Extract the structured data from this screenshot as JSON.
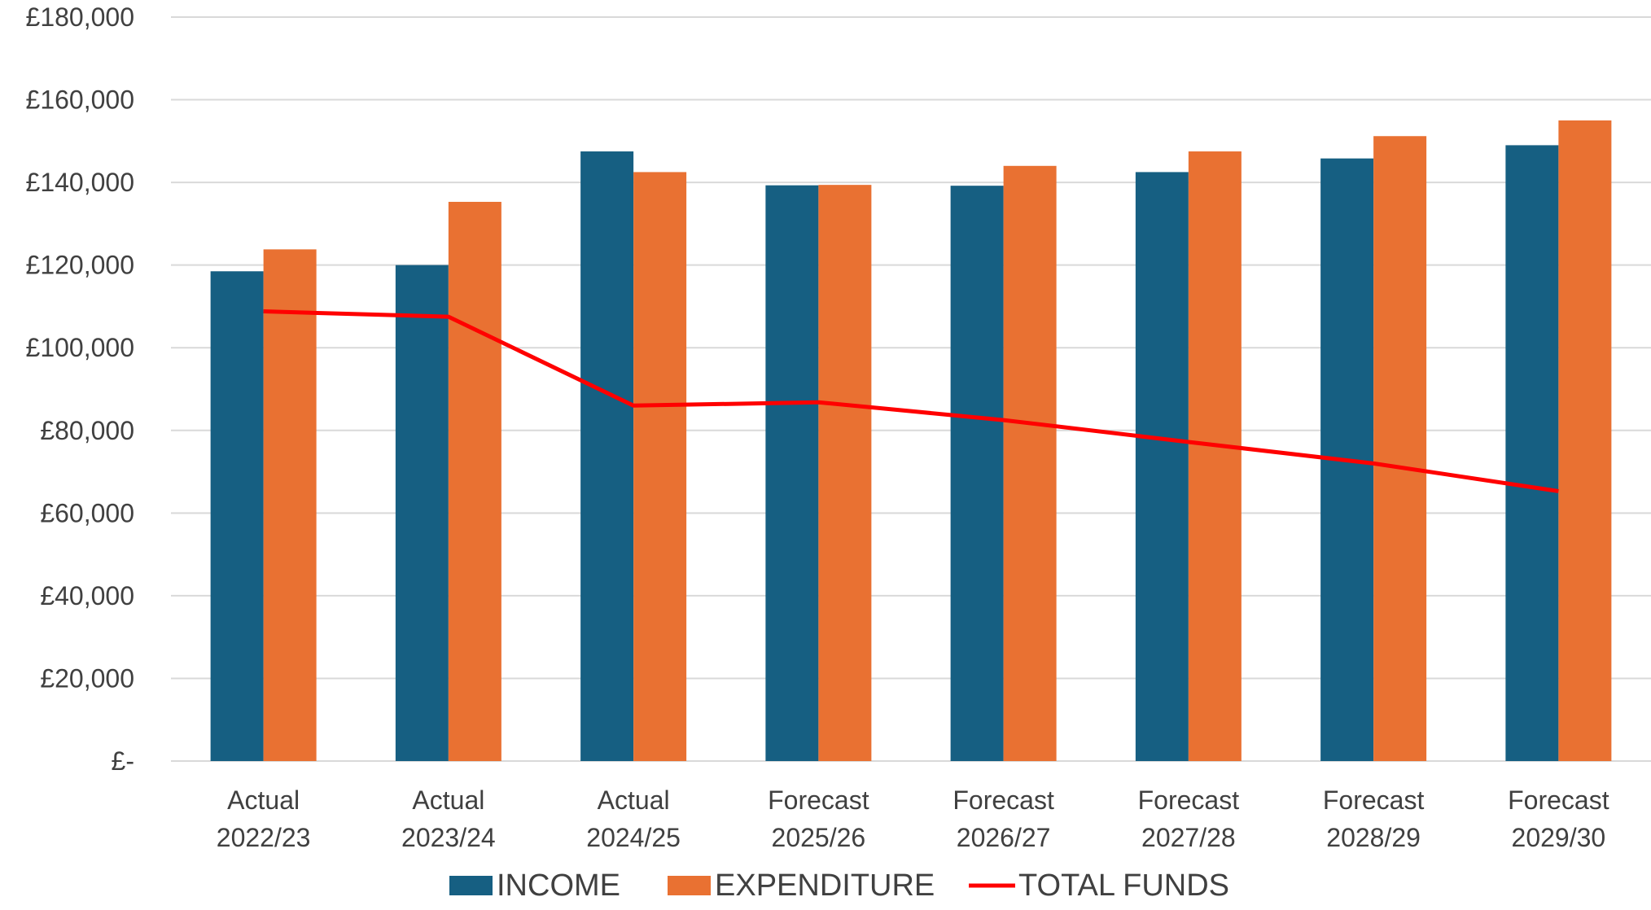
{
  "chart_data": {
    "type": "bar",
    "categories": [
      [
        "Actual",
        "2022/23"
      ],
      [
        "Actual",
        "2023/24"
      ],
      [
        "Actual",
        "2024/25"
      ],
      [
        "Forecast",
        "2025/26"
      ],
      [
        "Forecast",
        "2026/27"
      ],
      [
        "Forecast",
        "2027/28"
      ],
      [
        "Forecast",
        "2028/29"
      ],
      [
        "Forecast",
        "2029/30"
      ]
    ],
    "series": [
      {
        "name": "INCOME",
        "type": "bar",
        "color": "#165f82",
        "values": [
          118500,
          120000,
          147500,
          139300,
          139200,
          142500,
          145800,
          149000
        ]
      },
      {
        "name": "EXPENDITURE",
        "type": "bar",
        "color": "#e97132",
        "values": [
          123800,
          135300,
          142500,
          139400,
          144000,
          147500,
          151200,
          155000
        ]
      },
      {
        "name": "TOTAL FUNDS",
        "type": "line",
        "color": "#ff0000",
        "values": [
          108800,
          107500,
          86000,
          86800,
          82500,
          77200,
          72000,
          65300
        ]
      }
    ],
    "ylim": [
      0,
      180000
    ],
    "yticks": [
      0,
      20000,
      40000,
      60000,
      80000,
      100000,
      120000,
      140000,
      160000,
      180000
    ],
    "ytick_labels": [
      "£-",
      "£20,000",
      "£40,000",
      "£60,000",
      "£80,000",
      "£100,000",
      "£120,000",
      "£140,000",
      "£160,000",
      "£180,000"
    ],
    "grid": true,
    "legend_position": "bottom",
    "title": "",
    "xlabel": "",
    "ylabel": ""
  }
}
